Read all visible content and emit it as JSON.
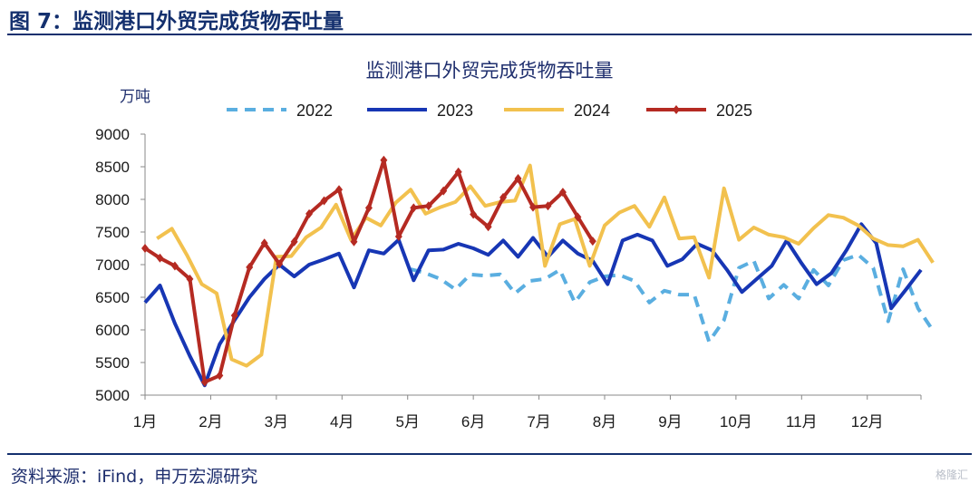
{
  "figure": {
    "label": "图 7：监测港口外贸完成货物吞吐量",
    "source": "资料来源：iFind，申万宏源研究",
    "watermark": "格隆汇"
  },
  "colors": {
    "title_blue": "#14306e",
    "2022": "#5aaee0",
    "2023": "#1736b4",
    "2024": "#f2c14e",
    "2025": "#b52a22"
  },
  "chart_data": {
    "type": "line",
    "title": "监测港口外贸完成货物吞吐量",
    "ylabel": "万吨",
    "xlabel": "",
    "ylim": [
      5000,
      9000
    ],
    "yticks": [
      5000,
      5500,
      6000,
      6500,
      7000,
      7500,
      8000,
      8500,
      9000
    ],
    "xlim_weeks": [
      1,
      53
    ],
    "month_ticks": [
      {
        "label": "1月",
        "week": 1
      },
      {
        "label": "2月",
        "week": 5.4
      },
      {
        "label": "3月",
        "week": 9.8
      },
      {
        "label": "4月",
        "week": 14.2
      },
      {
        "label": "5月",
        "week": 18.6
      },
      {
        "label": "6月",
        "week": 23
      },
      {
        "label": "7月",
        "week": 27.4
      },
      {
        "label": "8月",
        "week": 31.8
      },
      {
        "label": "9月",
        "week": 36.2
      },
      {
        "label": "10月",
        "week": 40.6
      },
      {
        "label": "11月",
        "week": 45
      },
      {
        "label": "12月",
        "week": 49.4
      }
    ],
    "series": [
      {
        "name": "2022",
        "style": "dashed",
        "start_week": 18.8,
        "values": [
          6930,
          6870,
          6780,
          6620,
          6850,
          6830,
          6850,
          6560,
          6750,
          6780,
          6920,
          6420,
          6730,
          6820,
          6840,
          6750,
          6420,
          6600,
          6540,
          6540,
          5820,
          6150,
          6950,
          7060,
          6480,
          6690,
          6480,
          6920,
          6680,
          7070,
          7150,
          6950,
          6130,
          6930,
          6330,
          5990
        ]
      },
      {
        "name": "2023",
        "style": "solid",
        "start_week": 1,
        "values": [
          6420,
          6680,
          6100,
          5600,
          5150,
          5780,
          6150,
          6500,
          6780,
          7000,
          6820,
          7000,
          7080,
          7170,
          6650,
          7220,
          7170,
          7380,
          6760,
          7220,
          7230,
          7320,
          7250,
          7150,
          7370,
          7120,
          7410,
          7120,
          7370,
          7170,
          7060,
          6700,
          7370,
          7460,
          7370,
          6980,
          7080,
          7320,
          7220,
          6920,
          6580,
          6780,
          6980,
          7370,
          7020,
          6700,
          6870,
          7220,
          7620,
          7330,
          6330,
          6620,
          6920
        ]
      },
      {
        "name": "2024",
        "style": "solid",
        "start_week": 1.8,
        "values": [
          7400,
          7550,
          7150,
          6700,
          6560,
          5550,
          5450,
          5620,
          7120,
          7130,
          7420,
          7570,
          7920,
          7380,
          7720,
          7600,
          7950,
          8150,
          7780,
          7880,
          7960,
          8200,
          7900,
          7960,
          7980,
          8520,
          6980,
          7620,
          7700,
          6980,
          7600,
          7800,
          7900,
          7580,
          8030,
          7400,
          7420,
          6800,
          8170,
          7380,
          7570,
          7460,
          7420,
          7320,
          7560,
          7760,
          7720,
          7600,
          7400,
          7300,
          7280,
          7380,
          7030
        ]
      },
      {
        "name": "2025",
        "style": "markers",
        "start_week": 1,
        "values": [
          7250,
          7100,
          6980,
          6780,
          5200,
          5300,
          6220,
          6960,
          7330,
          7010,
          7350,
          7780,
          7980,
          8150,
          7350,
          7870,
          8600,
          7430,
          7870,
          7900,
          8130,
          8420,
          7770,
          7580,
          8030,
          8320,
          7880,
          7900,
          8110,
          7730,
          7360
        ]
      }
    ],
    "legend": [
      "2022",
      "2023",
      "2024",
      "2025"
    ],
    "legend_position": "top-center",
    "grid": false
  }
}
